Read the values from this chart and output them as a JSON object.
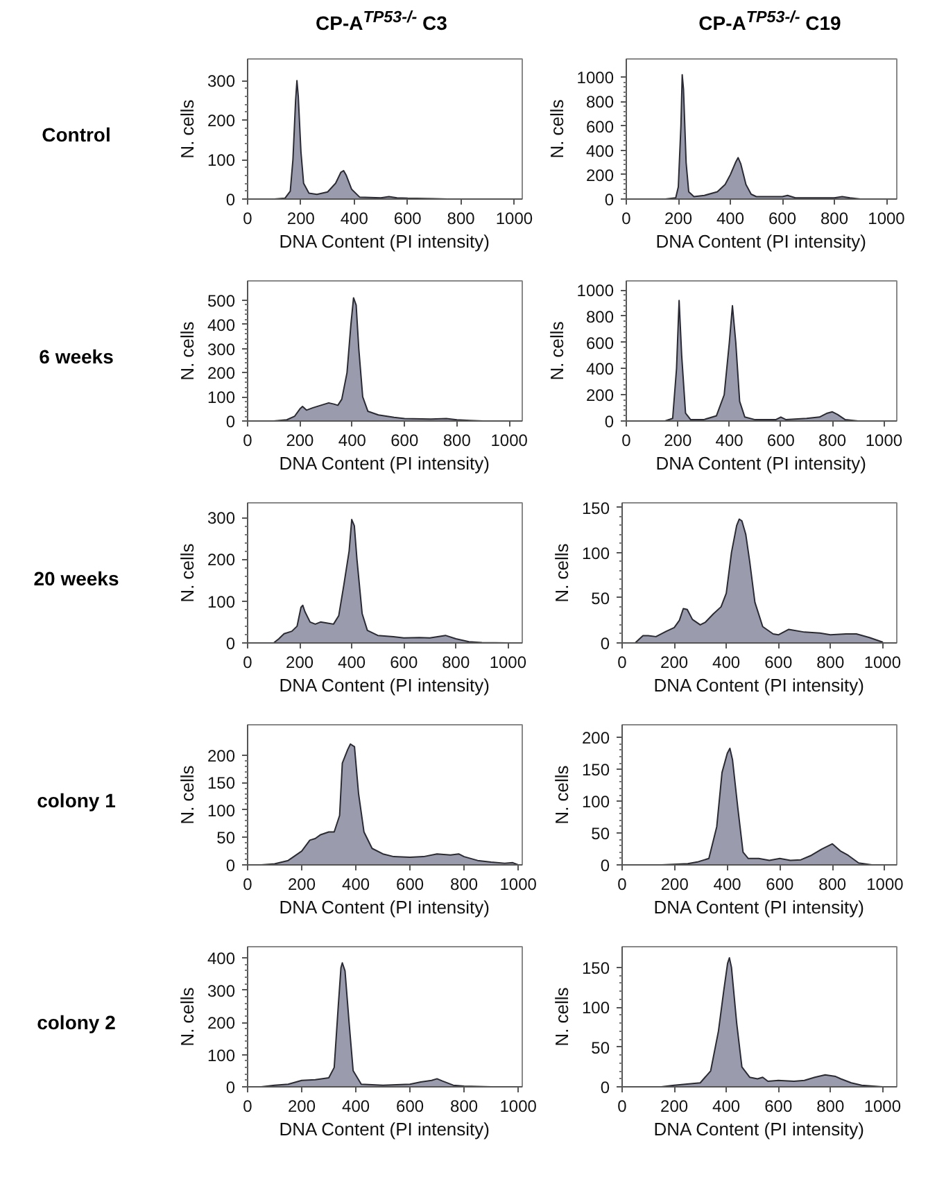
{
  "chart_data": [
    {
      "type": "area",
      "title": "CP-A$^{TP53-/-}$ C3",
      "annotations": [
        "Control"
      ],
      "xlabel": "DNA Content (PI intensity)",
      "ylabel": "N. cells",
      "color": "#9a9cae",
      "xlim": [
        0,
        1030
      ],
      "xticks": [
        0,
        200,
        400,
        600,
        800,
        1000
      ],
      "ylim": [
        0,
        355
      ],
      "yticks": [
        0,
        100,
        200,
        300
      ],
      "x": [
        0,
        100,
        140,
        160,
        170,
        180,
        185,
        190,
        200,
        210,
        230,
        260,
        300,
        330,
        350,
        360,
        370,
        390,
        420,
        500,
        530,
        560,
        600,
        700,
        750,
        1000
      ],
      "values": [
        0,
        0,
        2,
        20,
        100,
        250,
        300,
        260,
        120,
        40,
        15,
        12,
        18,
        40,
        68,
        72,
        60,
        25,
        5,
        3,
        6,
        3,
        2,
        1,
        0,
        0
      ]
    },
    {
      "type": "area",
      "title": "CP-A$^{TP53-/-}$ C19",
      "xlabel": "DNA Content (PI intensity)",
      "ylabel": "N. cells",
      "color": "#9a9cae",
      "xlim": [
        0,
        1040
      ],
      "xticks": [
        0,
        200,
        400,
        600,
        800,
        1000
      ],
      "ylim": [
        0,
        1150
      ],
      "yticks": [
        0,
        200,
        400,
        600,
        800,
        1000
      ],
      "x": [
        0,
        150,
        190,
        200,
        210,
        215,
        220,
        230,
        240,
        260,
        300,
        350,
        380,
        400,
        420,
        430,
        440,
        460,
        480,
        500,
        600,
        620,
        650,
        800,
        830,
        860,
        900,
        1000
      ],
      "values": [
        0,
        0,
        10,
        100,
        600,
        1020,
        900,
        300,
        60,
        20,
        30,
        60,
        120,
        200,
        300,
        340,
        290,
        120,
        40,
        20,
        20,
        30,
        10,
        10,
        20,
        10,
        0,
        0
      ]
    },
    {
      "type": "area",
      "annotations": [
        "6 weeks"
      ],
      "xlabel": "DNA Content (PI intensity)",
      "ylabel": "N. cells",
      "color": "#9a9cae",
      "xlim": [
        0,
        1050
      ],
      "xticks": [
        0,
        200,
        400,
        600,
        800,
        1000
      ],
      "ylim": [
        0,
        580
      ],
      "yticks": [
        0,
        100,
        200,
        300,
        400,
        500
      ],
      "x": [
        0,
        100,
        150,
        180,
        200,
        210,
        225,
        250,
        280,
        310,
        330,
        345,
        360,
        380,
        395,
        405,
        415,
        425,
        440,
        460,
        500,
        560,
        600,
        700,
        760,
        800,
        850,
        900,
        1000
      ],
      "values": [
        0,
        0,
        5,
        20,
        50,
        60,
        45,
        55,
        65,
        75,
        70,
        65,
        90,
        200,
        400,
        510,
        480,
        300,
        100,
        40,
        25,
        15,
        10,
        8,
        10,
        5,
        2,
        0,
        0
      ]
    },
    {
      "type": "area",
      "xlabel": "DNA Content (PI intensity)",
      "ylabel": "N. cells",
      "color": "#9a9cae",
      "xlim": [
        0,
        1050
      ],
      "xticks": [
        0,
        200,
        400,
        600,
        800,
        1000
      ],
      "ylim": [
        0,
        1070
      ],
      "yticks": [
        0,
        200,
        400,
        600,
        800,
        1000
      ],
      "x": [
        0,
        150,
        180,
        195,
        205,
        215,
        230,
        250,
        300,
        350,
        380,
        400,
        412,
        425,
        440,
        460,
        500,
        580,
        600,
        620,
        700,
        750,
        780,
        800,
        820,
        850,
        900,
        1000
      ],
      "values": [
        0,
        0,
        20,
        400,
        920,
        500,
        60,
        10,
        10,
        40,
        200,
        600,
        880,
        600,
        150,
        30,
        10,
        10,
        30,
        10,
        20,
        30,
        60,
        70,
        50,
        10,
        0,
        0
      ]
    },
    {
      "type": "area",
      "annotations": [
        "20 weeks"
      ],
      "xlabel": "DNA Content (PI intensity)",
      "ylabel": "N. cells",
      "color": "#9a9cae",
      "xlim": [
        0,
        1055
      ],
      "xticks": [
        0,
        200,
        400,
        600,
        800,
        1000
      ],
      "ylim": [
        0,
        335
      ],
      "yticks": [
        0,
        100,
        200,
        300
      ],
      "x": [
        0,
        100,
        120,
        140,
        170,
        190,
        205,
        212,
        220,
        240,
        260,
        280,
        300,
        330,
        350,
        370,
        390,
        400,
        410,
        420,
        440,
        460,
        500,
        560,
        600,
        660,
        700,
        760,
        800,
        850,
        900,
        1000
      ],
      "values": [
        0,
        0,
        10,
        22,
        28,
        40,
        85,
        90,
        75,
        50,
        45,
        50,
        48,
        45,
        65,
        140,
        220,
        295,
        280,
        200,
        70,
        30,
        18,
        15,
        12,
        13,
        12,
        18,
        10,
        3,
        1,
        0
      ]
    },
    {
      "type": "area",
      "xlabel": "DNA Content (PI intensity)",
      "ylabel": "N. cells",
      "color": "#9a9cae",
      "xlim": [
        0,
        1055
      ],
      "xticks": [
        0,
        200,
        400,
        600,
        800,
        1000
      ],
      "ylim": [
        0,
        155
      ],
      "yticks": [
        0,
        50,
        100,
        150
      ],
      "x": [
        0,
        50,
        80,
        100,
        130,
        170,
        200,
        220,
        235,
        250,
        270,
        300,
        320,
        350,
        380,
        400,
        420,
        440,
        450,
        460,
        475,
        490,
        510,
        540,
        580,
        600,
        640,
        700,
        760,
        800,
        860,
        900,
        950,
        1000
      ],
      "values": [
        0,
        0,
        8,
        8,
        7,
        13,
        17,
        25,
        38,
        37,
        26,
        20,
        23,
        32,
        40,
        55,
        100,
        130,
        137,
        135,
        120,
        90,
        45,
        18,
        10,
        9,
        15,
        12,
        11,
        9,
        10,
        10,
        6,
        1
      ]
    },
    {
      "type": "area",
      "annotations": [
        "colony 1"
      ],
      "xlabel": "DNA Content (PI intensity)",
      "ylabel": "N. cells",
      "color": "#9a9cae",
      "xlim": [
        0,
        1015
      ],
      "xticks": [
        0,
        200,
        400,
        600,
        800,
        1000
      ],
      "ylim": [
        0,
        255
      ],
      "yticks": [
        0,
        50,
        100,
        150,
        200
      ],
      "x": [
        0,
        50,
        100,
        150,
        200,
        230,
        250,
        270,
        300,
        320,
        340,
        350,
        370,
        380,
        395,
        410,
        430,
        460,
        500,
        540,
        600,
        650,
        700,
        750,
        780,
        800,
        850,
        900,
        950,
        980,
        1000
      ],
      "values": [
        0,
        0,
        2,
        8,
        25,
        45,
        48,
        55,
        60,
        60,
        90,
        185,
        210,
        220,
        215,
        130,
        60,
        30,
        20,
        15,
        14,
        15,
        20,
        18,
        20,
        15,
        8,
        5,
        3,
        4,
        0
      ]
    },
    {
      "type": "area",
      "xlabel": "DNA Content (PI intensity)",
      "ylabel": "N. cells",
      "color": "#9a9cae",
      "xlim": [
        0,
        1045
      ],
      "xticks": [
        0,
        200,
        400,
        600,
        800,
        1000
      ],
      "ylim": [
        0,
        220
      ],
      "yticks": [
        0,
        50,
        100,
        150,
        200
      ],
      "x": [
        0,
        150,
        250,
        290,
        330,
        360,
        380,
        400,
        410,
        420,
        440,
        460,
        480,
        520,
        560,
        600,
        640,
        680,
        720,
        760,
        800,
        830,
        860,
        900,
        950,
        1000
      ],
      "values": [
        0,
        0,
        2,
        5,
        10,
        60,
        145,
        175,
        183,
        165,
        90,
        20,
        10,
        10,
        7,
        10,
        7,
        8,
        15,
        25,
        33,
        22,
        15,
        3,
        0,
        0
      ]
    },
    {
      "type": "area",
      "annotations": [
        "colony 2"
      ],
      "xlabel": "DNA Content (PI intensity)",
      "ylabel": "N. cells",
      "color": "#9a9cae",
      "xlim": [
        0,
        1015
      ],
      "xticks": [
        0,
        200,
        400,
        600,
        800,
        1000
      ],
      "ylim": [
        0,
        435
      ],
      "yticks": [
        0,
        100,
        200,
        300,
        400
      ],
      "x": [
        0,
        50,
        100,
        150,
        200,
        250,
        300,
        320,
        335,
        345,
        350,
        360,
        375,
        390,
        420,
        500,
        600,
        640,
        680,
        700,
        720,
        760,
        800,
        900,
        1000
      ],
      "values": [
        0,
        0,
        5,
        8,
        20,
        22,
        28,
        60,
        250,
        370,
        385,
        360,
        200,
        50,
        8,
        5,
        8,
        15,
        20,
        25,
        18,
        5,
        2,
        0,
        0
      ]
    },
    {
      "type": "area",
      "xlabel": "DNA Content (PI intensity)",
      "ylabel": "N. cells",
      "color": "#9a9cae",
      "xlim": [
        0,
        1055
      ],
      "xticks": [
        0,
        200,
        400,
        600,
        800,
        1000
      ],
      "ylim": [
        0,
        176
      ],
      "yticks": [
        0,
        50,
        100,
        150
      ],
      "x": [
        0,
        150,
        200,
        300,
        340,
        370,
        390,
        405,
        412,
        420,
        440,
        460,
        490,
        520,
        540,
        560,
        600,
        660,
        700,
        740,
        780,
        820,
        840,
        880,
        920,
        1000
      ],
      "values": [
        0,
        0,
        2,
        5,
        20,
        70,
        120,
        155,
        162,
        150,
        80,
        25,
        12,
        10,
        12,
        7,
        8,
        7,
        8,
        12,
        15,
        13,
        10,
        5,
        2,
        0
      ]
    }
  ]
}
